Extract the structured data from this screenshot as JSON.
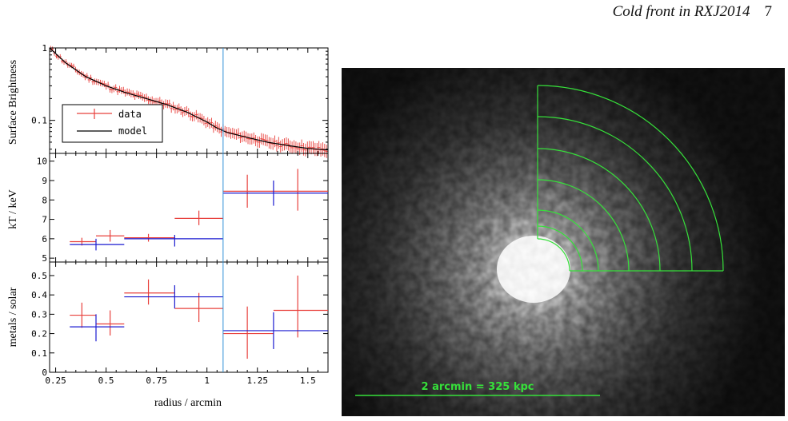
{
  "header": {
    "title": "Cold front in RXJ2014",
    "page_number": "7"
  },
  "colors": {
    "data": "#e8403c",
    "model": "#1a1ad0",
    "sb_model": "#000000",
    "front_line": "#2f8fd6",
    "overlay": "#36e03a"
  },
  "chart_data": [
    {
      "type": "scatter",
      "panel": "surface-brightness",
      "ylabel": "Surface Brightness",
      "yscale": "log",
      "ylim": [
        0.035,
        1.0
      ],
      "xlim": [
        0.22,
        1.6
      ],
      "yticks": [
        "1",
        "0.1"
      ],
      "legend": {
        "position": "bottom-left",
        "entries": [
          "data",
          "model"
        ]
      },
      "model_points": [
        [
          0.22,
          1.0
        ],
        [
          0.3,
          0.62
        ],
        [
          0.4,
          0.4
        ],
        [
          0.5,
          0.3
        ],
        [
          0.6,
          0.24
        ],
        [
          0.7,
          0.2
        ],
        [
          0.8,
          0.165
        ],
        [
          0.9,
          0.13
        ],
        [
          1.0,
          0.095
        ],
        [
          1.05,
          0.078
        ],
        [
          1.1,
          0.068
        ],
        [
          1.2,
          0.058
        ],
        [
          1.3,
          0.05
        ],
        [
          1.4,
          0.045
        ],
        [
          1.5,
          0.041
        ],
        [
          1.6,
          0.039
        ]
      ]
    },
    {
      "type": "scatter",
      "panel": "temperature",
      "ylabel": "kT / keV",
      "ylim": [
        4.8,
        10.4
      ],
      "xlim": [
        0.22,
        1.6
      ],
      "yticks": [
        "5",
        "6",
        "7",
        "8",
        "9",
        "10"
      ],
      "series": [
        {
          "name": "data",
          "points": [
            {
              "x": 0.38,
              "xlo": 0.32,
              "xhi": 0.45,
              "y": 5.85,
              "ylo": 5.65,
              "yhi": 6.05
            },
            {
              "x": 0.52,
              "xlo": 0.45,
              "xhi": 0.59,
              "y": 6.15,
              "ylo": 5.85,
              "yhi": 6.45
            },
            {
              "x": 0.71,
              "xlo": 0.59,
              "xhi": 0.84,
              "y": 6.05,
              "ylo": 5.85,
              "yhi": 6.25
            },
            {
              "x": 0.96,
              "xlo": 0.84,
              "xhi": 1.08,
              "y": 7.05,
              "ylo": 6.7,
              "yhi": 7.45
            },
            {
              "x": 1.2,
              "xlo": 1.08,
              "xhi": 1.33,
              "y": 8.45,
              "ylo": 7.6,
              "yhi": 9.3
            },
            {
              "x": 1.45,
              "xlo": 1.33,
              "xhi": 1.6,
              "y": 8.45,
              "ylo": 7.45,
              "yhi": 9.6
            }
          ]
        },
        {
          "name": "model",
          "points": [
            {
              "x": 0.45,
              "xlo": 0.32,
              "xhi": 0.59,
              "y": 5.7,
              "ylo": 5.4,
              "yhi": 6.0
            },
            {
              "x": 0.84,
              "xlo": 0.59,
              "xhi": 1.08,
              "y": 6.0,
              "ylo": 5.6,
              "yhi": 6.2
            },
            {
              "x": 1.33,
              "xlo": 1.08,
              "xhi": 1.6,
              "y": 8.35,
              "ylo": 7.7,
              "yhi": 9.0
            }
          ]
        }
      ]
    },
    {
      "type": "scatter",
      "panel": "metallicity",
      "ylabel": "metals / solar",
      "xlabel": "radius / arcmin",
      "ylim": [
        0,
        0.57
      ],
      "xlim": [
        0.22,
        1.6
      ],
      "yticks": [
        "0",
        "0.1",
        "0.2",
        "0.3",
        "0.4",
        "0.5"
      ],
      "xticks": [
        "0.25",
        "0.5",
        "0.75",
        "1",
        "1.25",
        "1.5"
      ],
      "series": [
        {
          "name": "data",
          "points": [
            {
              "x": 0.38,
              "xlo": 0.32,
              "xhi": 0.45,
              "y": 0.295,
              "ylo": 0.23,
              "yhi": 0.36
            },
            {
              "x": 0.52,
              "xlo": 0.45,
              "xhi": 0.59,
              "y": 0.25,
              "ylo": 0.19,
              "yhi": 0.32
            },
            {
              "x": 0.71,
              "xlo": 0.59,
              "xhi": 0.84,
              "y": 0.41,
              "ylo": 0.35,
              "yhi": 0.48
            },
            {
              "x": 0.96,
              "xlo": 0.84,
              "xhi": 1.08,
              "y": 0.33,
              "ylo": 0.26,
              "yhi": 0.41
            },
            {
              "x": 1.2,
              "xlo": 1.08,
              "xhi": 1.33,
              "y": 0.2,
              "ylo": 0.07,
              "yhi": 0.34
            },
            {
              "x": 1.45,
              "xlo": 1.33,
              "xhi": 1.6,
              "y": 0.32,
              "ylo": 0.18,
              "yhi": 0.5
            }
          ]
        },
        {
          "name": "model",
          "points": [
            {
              "x": 0.45,
              "xlo": 0.32,
              "xhi": 0.59,
              "y": 0.235,
              "ylo": 0.16,
              "yhi": 0.3
            },
            {
              "x": 0.84,
              "xlo": 0.59,
              "xhi": 1.08,
              "y": 0.39,
              "ylo": 0.33,
              "yhi": 0.45
            },
            {
              "x": 1.33,
              "xlo": 1.08,
              "xhi": 1.6,
              "y": 0.215,
              "ylo": 0.12,
              "yhi": 0.31
            }
          ]
        }
      ]
    }
  ],
  "front_radius": 1.08,
  "image": {
    "scale_label": "2 arcmin = 325 kpc",
    "annuli_count": 7
  }
}
